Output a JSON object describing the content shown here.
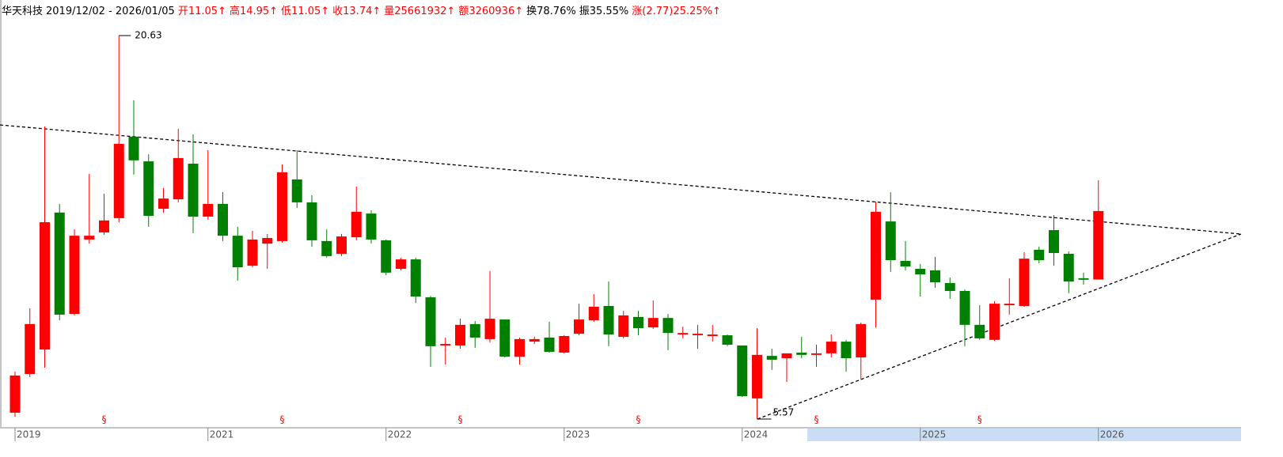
{
  "chart_data": {
    "type": "candlestick",
    "header": [
      {
        "text": "华天科技",
        "color": "#000000"
      },
      {
        "text": "2019/12/02 - 2026/01/05",
        "color": "#000000"
      },
      {
        "text": "开11.05↑",
        "color": "#ff0000"
      },
      {
        "text": "高14.95↑",
        "color": "#ff0000"
      },
      {
        "text": "低11.05↑",
        "color": "#ff0000"
      },
      {
        "text": "收13.74↑",
        "color": "#ff0000"
      },
      {
        "text": "量25661932↑",
        "color": "#ff0000"
      },
      {
        "text": "额3260936↑",
        "color": "#ff0000"
      },
      {
        "text": "换78.76%",
        "color": "#000000"
      },
      {
        "text": "振35.55%",
        "color": "#000000"
      },
      {
        "text": "涨(2.77)25.25%↑",
        "color": "#ff0000"
      }
    ],
    "categories": [
      "2019",
      null,
      null,
      null,
      null,
      null,
      null,
      null,
      null,
      null,
      null,
      null,
      null,
      "2021",
      null,
      null,
      null,
      null,
      null,
      null,
      null,
      null,
      null,
      null,
      null,
      "2022",
      null,
      null,
      null,
      null,
      null,
      null,
      null,
      null,
      null,
      null,
      null,
      "2023",
      null,
      null,
      null,
      null,
      null,
      null,
      null,
      null,
      null,
      null,
      null,
      "2024",
      null,
      null,
      null,
      null,
      null,
      null,
      null,
      null,
      null,
      null,
      null,
      "2025",
      null,
      null,
      null,
      null,
      null,
      null,
      null,
      null,
      null,
      null,
      null,
      "2026"
    ],
    "open": [
      5.82,
      7.34,
      8.3,
      13.68,
      9.7,
      12.62,
      12.9,
      13.46,
      16.66,
      15.69,
      13.83,
      14.2,
      15.6,
      13.52,
      14.02,
      12.77,
      11.59,
      12.46,
      12.56,
      14.98,
      14.08,
      12.56,
      12.06,
      12.71,
      13.64,
      12.59,
      11.47,
      11.84,
      10.35,
      8.46,
      8.46,
      9.3,
      8.71,
      9.48,
      8.02,
      8.61,
      8.77,
      8.18,
      8.92,
      9.45,
      10.01,
      8.8,
      9.58,
      9.17,
      9.54,
      8.89,
      8.86,
      8.83,
      8.86,
      8.46,
      6.38,
      8.05,
      7.96,
      8.18,
      8.09,
      8.15,
      8.61,
      7.99,
      10.26,
      13.33,
      11.78,
      11.47,
      11.41,
      10.91,
      10.6,
      9.27,
      8.68,
      10.04,
      10.01,
      12.22,
      12.99,
      12.06,
      11.1,
      11.05
    ],
    "high": [
      7.43,
      9.92,
      17.06,
      14.02,
      13.02,
      15.2,
      14.42,
      20.63,
      18.09,
      15.97,
      14.64,
      16.97,
      16.75,
      16.13,
      14.48,
      13.12,
      12.96,
      12.84,
      15.57,
      16.13,
      14.36,
      13.02,
      12.84,
      14.7,
      13.77,
      12.62,
      11.9,
      11.91,
      10.41,
      8.77,
      9.51,
      9.42,
      11.38,
      9.48,
      8.77,
      8.8,
      9.39,
      8.86,
      10.1,
      10.48,
      10.97,
      9.82,
      9.82,
      10.23,
      9.7,
      9.2,
      9.27,
      9.27,
      8.89,
      8.46,
      9.14,
      8.33,
      8.15,
      8.8,
      8.49,
      8.89,
      8.68,
      9.36,
      14.11,
      14.48,
      12.56,
      11.66,
      11.94,
      11.13,
      10.66,
      10.04,
      10.2,
      11.1,
      12.12,
      12.34,
      13.58,
      12.15,
      11.32,
      14.95
    ],
    "low": [
      5.66,
      7.22,
      7.59,
      9.45,
      9.64,
      12.46,
      12.81,
      13.3,
      15.17,
      13.12,
      13.68,
      14.08,
      12.87,
      13.4,
      12.56,
      11.0,
      11.53,
      11.47,
      12.5,
      13.86,
      12.34,
      11.91,
      11.97,
      12.59,
      12.46,
      11.22,
      11.41,
      10.13,
      7.62,
      7.71,
      8.33,
      8.37,
      8.58,
      7.99,
      7.71,
      8.52,
      8.18,
      8.15,
      8.86,
      9.39,
      8.43,
      8.74,
      8.86,
      9.11,
      8.27,
      8.74,
      8.33,
      8.61,
      8.43,
      6.44,
      5.57,
      7.5,
      7.03,
      7.96,
      7.62,
      7.99,
      7.43,
      7.12,
      9.17,
      11.35,
      11.41,
      10.38,
      10.73,
      10.29,
      8.43,
      8.68,
      8.64,
      9.67,
      9.98,
      11.69,
      11.59,
      10.51,
      10.85,
      11.05
    ],
    "close": [
      7.28,
      9.3,
      13.3,
      9.67,
      12.77,
      12.77,
      13.37,
      16.38,
      15.73,
      13.55,
      14.23,
      15.82,
      13.52,
      14.02,
      12.77,
      11.53,
      12.62,
      12.68,
      15.26,
      14.08,
      12.59,
      11.97,
      12.74,
      13.71,
      12.62,
      11.32,
      11.84,
      10.38,
      8.43,
      8.52,
      9.27,
      8.77,
      9.51,
      8.02,
      8.71,
      8.71,
      8.21,
      8.83,
      9.48,
      9.98,
      8.89,
      9.64,
      9.14,
      9.54,
      8.95,
      8.95,
      8.92,
      8.89,
      8.49,
      6.47,
      8.09,
      7.9,
      8.15,
      8.09,
      8.15,
      8.61,
      7.96,
      9.3,
      13.71,
      11.81,
      11.56,
      11.25,
      10.94,
      10.6,
      9.27,
      8.74,
      10.1,
      10.1,
      11.87,
      11.81,
      12.09,
      10.97,
      11.04,
      13.74
    ],
    "up_color": "#ff0000",
    "down_color": "#008000",
    "event_markers": [
      null,
      null,
      null,
      null,
      null,
      null,
      "§",
      null,
      null,
      null,
      null,
      null,
      null,
      null,
      null,
      null,
      null,
      null,
      "§",
      null,
      null,
      null,
      null,
      null,
      null,
      null,
      null,
      null,
      null,
      null,
      "§",
      null,
      null,
      null,
      null,
      null,
      null,
      null,
      null,
      null,
      null,
      null,
      "§",
      null,
      null,
      null,
      null,
      null,
      null,
      null,
      null,
      null,
      null,
      null,
      "§",
      null,
      null,
      null,
      null,
      null,
      null,
      null,
      null,
      null,
      null,
      "§",
      null,
      null,
      null,
      null,
      null,
      null,
      null,
      null
    ]
  }
}
